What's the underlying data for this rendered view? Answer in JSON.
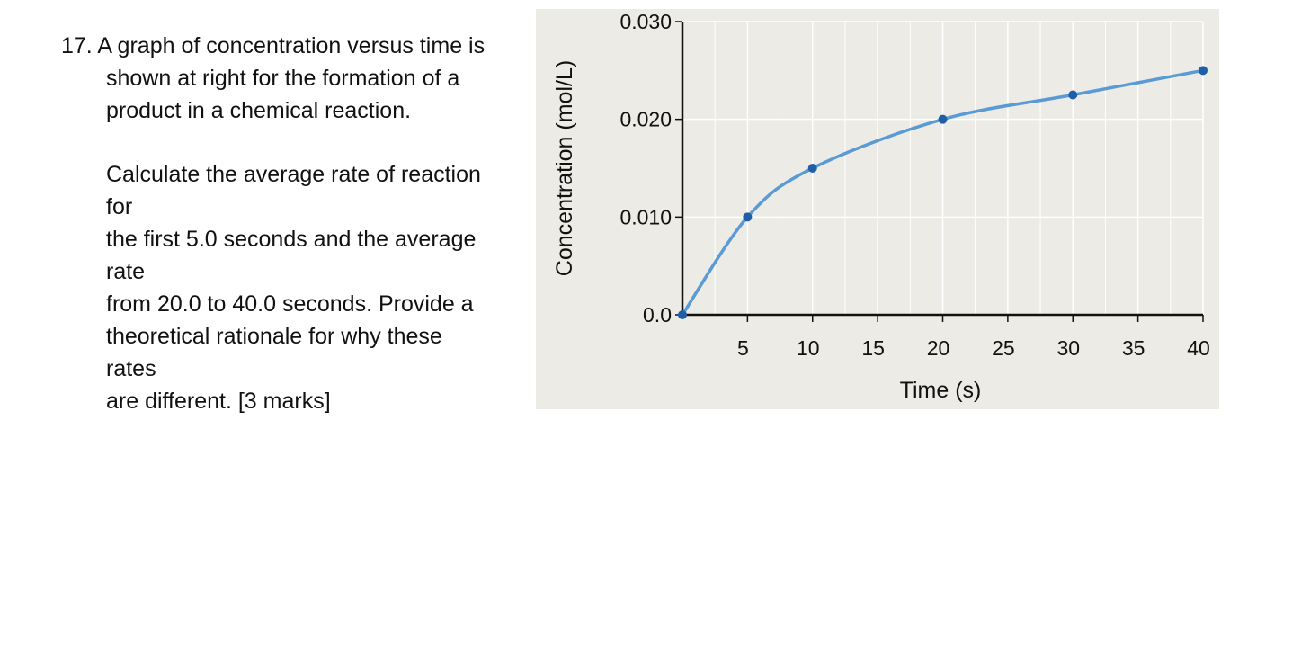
{
  "question": {
    "lines": [
      "17. A graph of concentration versus time is",
      "shown at right for the formation of a",
      "product in a chemical reaction.",
      "Calculate the average rate of reaction",
      "for",
      "the first 5.0 seconds and the average",
      "rate",
      "from 20.0 to 40.0 seconds. Provide a",
      "theoretical rationale for why these",
      "rates",
      "are different. [3 marks]"
    ]
  },
  "chart_data": {
    "type": "line",
    "title": "",
    "xlabel": "Time (s)",
    "ylabel": "Concentration (mol/L)",
    "xlim": [
      0,
      40
    ],
    "ylim": [
      0,
      0.03
    ],
    "x_ticks": [
      5,
      10,
      15,
      20,
      25,
      30,
      35,
      40
    ],
    "x_tick_labels": [
      "5",
      "10",
      "15",
      "20",
      "25",
      "30",
      "35",
      "40"
    ],
    "y_ticks": [
      0,
      0.01,
      0.02,
      0.03
    ],
    "y_tick_labels": [
      "0.0",
      "0.010",
      "0.020",
      "0.030"
    ],
    "grid": true,
    "background_color": "#ecebe6",
    "line_color": "#5b9bd5",
    "marker_color": "#1f5fa8",
    "series": [
      {
        "x": [
          0,
          5,
          10,
          20,
          30,
          40
        ],
        "y": [
          0.0,
          0.01,
          0.015,
          0.02,
          0.0225,
          0.025
        ]
      }
    ]
  }
}
